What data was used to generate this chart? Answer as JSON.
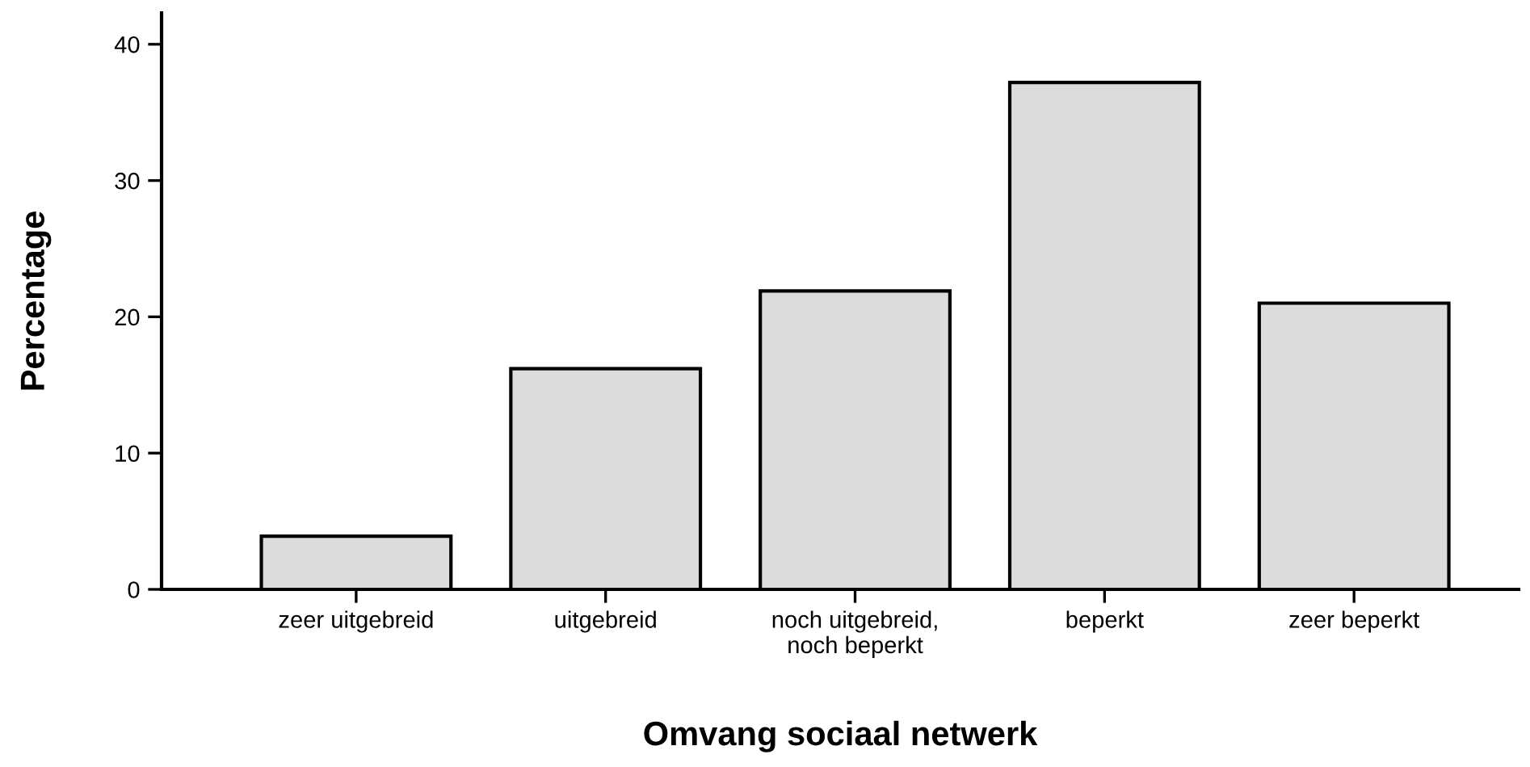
{
  "chart_data": {
    "type": "bar",
    "categories": [
      "zeer uitgebreid",
      "uitgebreid",
      "noch uitgebreid,\nnoch beperkt",
      "beperkt",
      "zeer beperkt"
    ],
    "values": [
      3.9,
      16.2,
      21.9,
      37.2,
      21.0
    ],
    "color": "#dcdcdc",
    "xlabel": "Omvang sociaal netwerk",
    "ylabel": "Percentage",
    "ylim": [
      0,
      42.3
    ],
    "yticks": [
      0,
      10,
      20,
      30,
      40
    ],
    "grid": false,
    "legend": false
  }
}
